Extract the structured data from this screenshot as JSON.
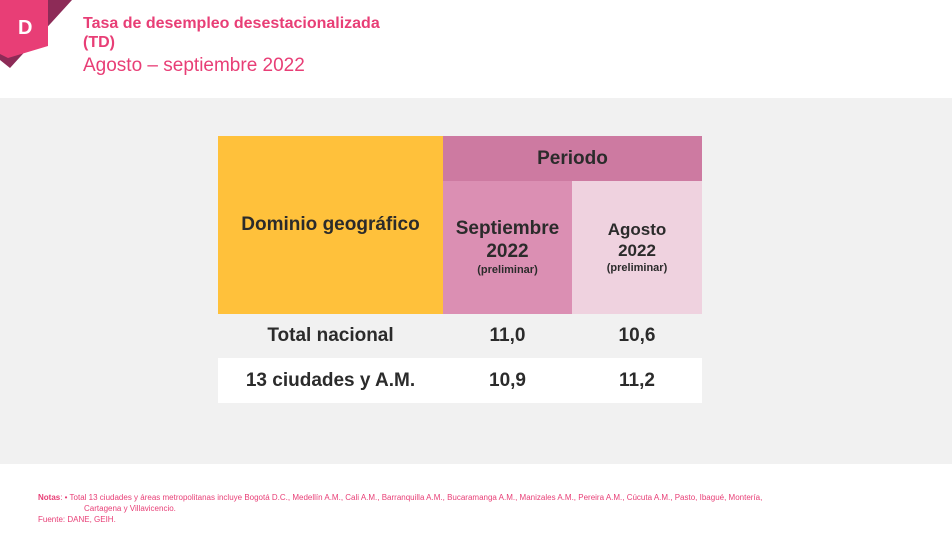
{
  "header": {
    "logo_letter": "D",
    "title_line1": "Tasa de desempleo desestacionalizada",
    "title_line2": "(TD)",
    "subtitle": "Agosto – septiembre  2022"
  },
  "table": {
    "domain_header": "Dominio geográfico",
    "period_header": "Periodo",
    "columns": [
      {
        "line1": "Septiembre",
        "line2": "2022",
        "note": "(preliminar)"
      },
      {
        "line1": "Agosto",
        "line2": "2022",
        "note": "(preliminar)"
      }
    ],
    "rows": [
      {
        "label": "Total nacional",
        "values": [
          "11,0",
          "10,6"
        ]
      },
      {
        "label": "13 ciudades y A.M.",
        "values": [
          "10,9",
          "11,2"
        ]
      }
    ]
  },
  "footer": {
    "notes_label": "Notas",
    "notes_line1": ": • Total 13 ciudades y áreas metropolitanas incluye Bogotá D.C., Medellín A.M., Cali A.M., Barranquilla A.M., Bucaramanga A.M., Manizales A.M., Pereira A.M., Cúcuta A.M., Pasto, Ibagué, Montería,",
    "notes_line2": "Cartagena y Villavicencio.",
    "source": "Fuente: DANE, GEIH."
  },
  "colors": {
    "brand_pink": "#e83e76",
    "header_yellow": "#ffc13b",
    "period_mauve": "#cd7aa1",
    "september_pink": "#db8fb3",
    "august_pink": "#efd2df"
  }
}
